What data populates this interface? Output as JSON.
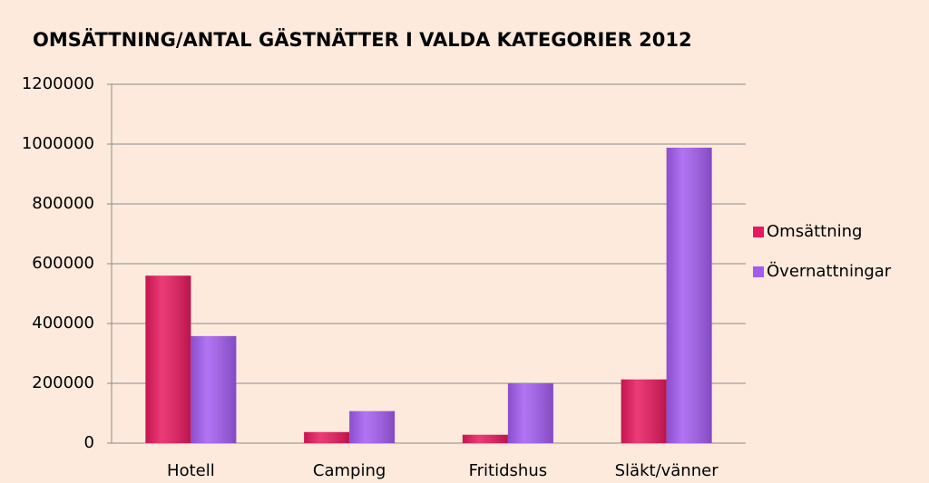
{
  "chart_data": {
    "type": "bar",
    "title": "OMSÄTTNING/ANTAL GÄSTNÄTTER  I VALDA KATEGORIER  2012",
    "categories": [
      "Hotell",
      "Camping",
      "Fritidshus",
      "Släkt/vänner"
    ],
    "series": [
      {
        "name": "Omsättning",
        "color": "#e8195f",
        "values": [
          560000,
          37000,
          28000,
          213000
        ]
      },
      {
        "name": "Övernattningar",
        "color": "#a35cf0",
        "values": [
          358000,
          107000,
          200000,
          988000
        ]
      }
    ],
    "ylim": [
      0,
      1200000
    ],
    "yticks": [
      0,
      200000,
      400000,
      600000,
      800000,
      1000000,
      1200000
    ],
    "grid": true,
    "legend": "right"
  }
}
